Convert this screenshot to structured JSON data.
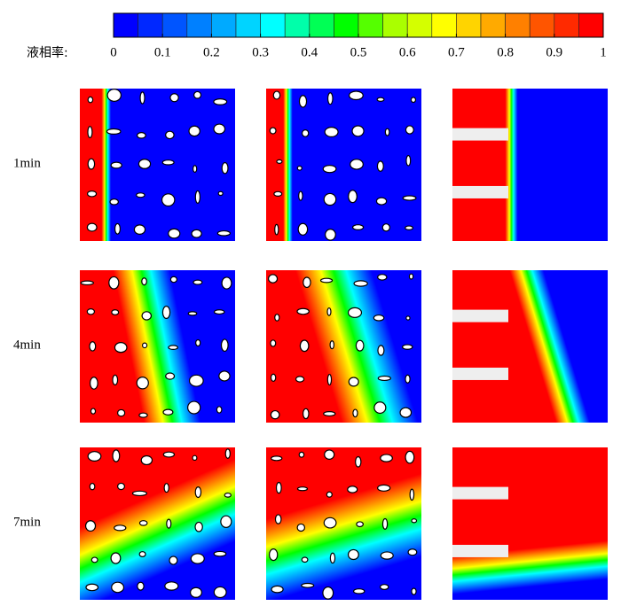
{
  "colorbar": {
    "label": "液相率:",
    "lim": [
      0,
      1
    ],
    "ticks": [
      0,
      0.1,
      0.2,
      0.3,
      0.4,
      0.5,
      0.6,
      0.7,
      0.8,
      0.9,
      1
    ],
    "colors": [
      "#0000ff",
      "#0028ff",
      "#0055ff",
      "#0080ff",
      "#00aaff",
      "#00d4ff",
      "#00ffff",
      "#00ffaa",
      "#00ff55",
      "#00ff00",
      "#55ff00",
      "#aaff00",
      "#d4ff00",
      "#ffff00",
      "#ffd400",
      "#ffaa00",
      "#ff8000",
      "#ff5500",
      "#ff2a00",
      "#ff0000"
    ]
  },
  "rows": [
    "1min",
    "4min",
    "7min"
  ]
}
